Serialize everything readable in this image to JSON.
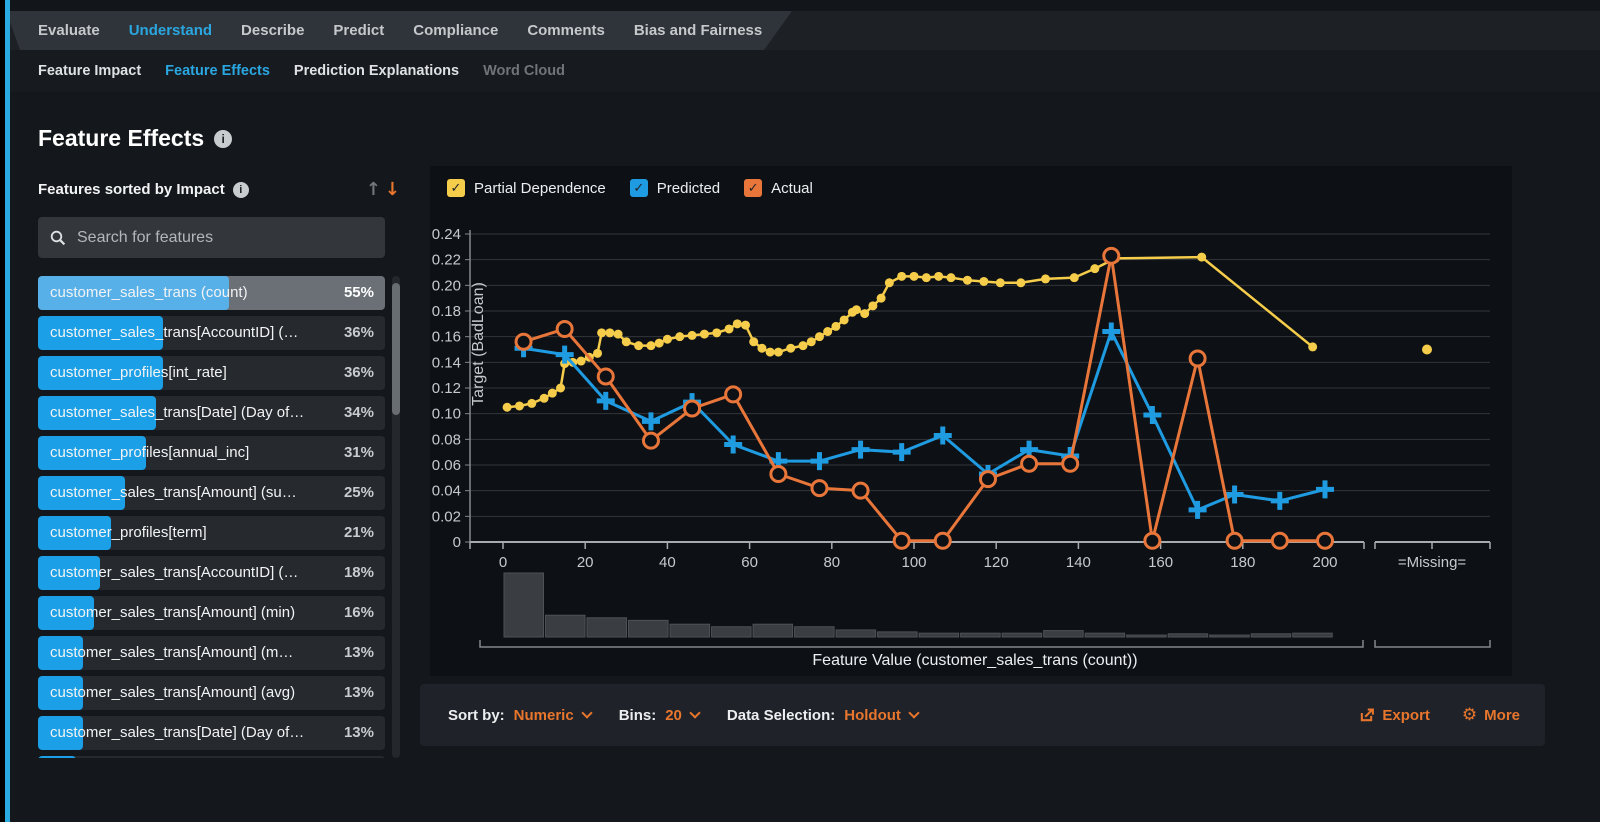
{
  "nav": {
    "tabs": [
      {
        "label": "Evaluate",
        "active": false
      },
      {
        "label": "Understand",
        "active": true
      },
      {
        "label": "Describe",
        "active": false
      },
      {
        "label": "Predict",
        "active": false
      },
      {
        "label": "Compliance",
        "active": false
      },
      {
        "label": "Comments",
        "active": false
      },
      {
        "label": "Bias and Fairness",
        "active": false
      }
    ]
  },
  "subnav": {
    "items": [
      {
        "label": "Feature Impact",
        "state": "normal"
      },
      {
        "label": "Feature Effects",
        "state": "active"
      },
      {
        "label": "Prediction Explanations",
        "state": "normal"
      },
      {
        "label": "Word Cloud",
        "state": "disabled"
      }
    ]
  },
  "page": {
    "title": "Feature Effects"
  },
  "sidebar": {
    "heading": "Features sorted by Impact",
    "search_placeholder": "Search for features",
    "features": [
      {
        "label": "customer_sales_trans (count)",
        "impact_pct": 55,
        "pct_text": "55%",
        "selected": true
      },
      {
        "label": "customer_sales_trans[AccountID] (…",
        "impact_pct": 36,
        "pct_text": "36%",
        "selected": false
      },
      {
        "label": "customer_profiles[int_rate]",
        "impact_pct": 36,
        "pct_text": "36%",
        "selected": false
      },
      {
        "label": "customer_sales_trans[Date] (Day of…",
        "impact_pct": 34,
        "pct_text": "34%",
        "selected": false
      },
      {
        "label": "customer_profiles[annual_inc]",
        "impact_pct": 31,
        "pct_text": "31%",
        "selected": false
      },
      {
        "label": "customer_sales_trans[Amount] (su…",
        "impact_pct": 25,
        "pct_text": "25%",
        "selected": false
      },
      {
        "label": "customer_profiles[term]",
        "impact_pct": 21,
        "pct_text": "21%",
        "selected": false
      },
      {
        "label": "customer_sales_trans[AccountID] (…",
        "impact_pct": 18,
        "pct_text": "18%",
        "selected": false
      },
      {
        "label": "customer_sales_trans[Amount] (min)",
        "impact_pct": 16,
        "pct_text": "16%",
        "selected": false
      },
      {
        "label": "customer_sales_trans[Amount] (m…",
        "impact_pct": 13,
        "pct_text": "13%",
        "selected": false
      },
      {
        "label": "customer_sales_trans[Amount] (avg)",
        "impact_pct": 13,
        "pct_text": "13%",
        "selected": false
      },
      {
        "label": "customer_sales_trans[Date] (Day of…",
        "impact_pct": 13,
        "pct_text": "13%",
        "selected": false
      }
    ],
    "partial_row_pct": 11
  },
  "legend": {
    "items": [
      {
        "label": "Partial Dependence",
        "color": "#f5cd4b",
        "checked": true
      },
      {
        "label": "Predicted",
        "color": "#1f9be1",
        "checked": true
      },
      {
        "label": "Actual",
        "color": "#e8763a",
        "checked": true
      }
    ]
  },
  "icons": {
    "info": "i",
    "sort_asc": "↑",
    "sort_desc": "↓",
    "more": "⚙",
    "check": "✓"
  },
  "controls": {
    "sort_by_label": "Sort by:",
    "sort_by_value": "Numeric",
    "bins_label": "Bins:",
    "bins_value": "20",
    "data_selection_label": "Data Selection:",
    "data_selection_value": "Holdout",
    "export_label": "Export",
    "more_label": "More"
  },
  "colors": {
    "accent_blue": "#2aa7e0",
    "accent_orange": "#e8762d",
    "partial_dependence": "#f5cd4b",
    "predicted": "#1f9be1",
    "actual": "#e8763a"
  },
  "chart_data": {
    "type": "line",
    "title": "",
    "ylabel": "Target (BadLoan)",
    "xlabel": "Feature Value (customer_sales_trans (count))",
    "ylim": [
      0,
      0.24
    ],
    "yticks": [
      "0",
      "0.02",
      "0.04",
      "0.06",
      "0.08",
      "0.10",
      "0.12",
      "0.14",
      "0.16",
      "0.18",
      "0.20",
      "0.22",
      "0.24"
    ],
    "xticks": [
      0,
      20,
      40,
      60,
      80,
      100,
      120,
      140,
      160,
      180,
      200
    ],
    "missing_label": "=Missing=",
    "grid": true,
    "legend_position": "top",
    "series": [
      {
        "name": "Partial Dependence",
        "color": "#f5cd4b",
        "marker": "dot",
        "x": [
          1,
          4,
          7,
          10,
          12,
          14,
          15,
          17,
          19,
          21,
          23,
          24,
          26,
          28,
          30,
          33,
          36,
          38,
          40,
          43,
          46,
          49,
          52,
          55,
          57,
          59,
          61,
          63,
          65,
          67,
          70,
          73,
          75,
          77,
          79,
          81,
          83,
          85,
          86,
          88,
          90,
          92,
          94,
          97,
          100,
          103,
          106,
          109,
          113,
          117,
          121,
          126,
          132,
          139,
          144,
          149,
          170,
          197
        ],
        "y": [
          0.105,
          0.106,
          0.108,
          0.112,
          0.116,
          0.12,
          0.139,
          0.14,
          0.141,
          0.144,
          0.147,
          0.163,
          0.163,
          0.162,
          0.156,
          0.153,
          0.153,
          0.155,
          0.158,
          0.16,
          0.161,
          0.162,
          0.163,
          0.166,
          0.17,
          0.169,
          0.156,
          0.151,
          0.148,
          0.148,
          0.151,
          0.153,
          0.156,
          0.16,
          0.164,
          0.168,
          0.173,
          0.179,
          0.181,
          0.178,
          0.184,
          0.19,
          0.202,
          0.207,
          0.207,
          0.206,
          0.207,
          0.206,
          0.204,
          0.203,
          0.202,
          0.202,
          0.205,
          0.206,
          0.213,
          0.221,
          0.222,
          0.152
        ],
        "missing_y": 0.15
      },
      {
        "name": "Predicted",
        "color": "#1f9be1",
        "marker": "plus",
        "x": [
          5,
          15,
          25,
          36,
          46,
          56,
          67,
          77,
          87,
          97,
          107,
          118,
          128,
          138,
          148,
          158,
          169,
          178,
          189,
          200
        ],
        "y": [
          0.151,
          0.146,
          0.11,
          0.094,
          0.109,
          0.076,
          0.063,
          0.063,
          0.072,
          0.07,
          0.083,
          0.053,
          0.072,
          0.067,
          0.164,
          0.099,
          0.025,
          0.037,
          0.032,
          0.041
        ]
      },
      {
        "name": "Actual",
        "color": "#e8763a",
        "marker": "circle",
        "x": [
          5,
          15,
          25,
          36,
          46,
          56,
          67,
          77,
          87,
          97,
          107,
          118,
          128,
          138,
          148,
          158,
          169,
          178,
          189,
          200
        ],
        "y": [
          0.156,
          0.166,
          0.129,
          0.079,
          0.104,
          0.115,
          0.053,
          0.042,
          0.04,
          0.001,
          0.001,
          0.049,
          0.061,
          0.061,
          0.223,
          0.001,
          0.143,
          0.001,
          0.001,
          0.001
        ]
      }
    ],
    "histogram": {
      "bin_start": 0,
      "bin_end": 202,
      "bins": 20,
      "rel_heights": [
        100,
        34,
        30,
        26,
        20,
        16,
        20,
        16,
        11,
        8,
        6,
        6,
        6,
        10,
        6,
        3,
        5,
        3,
        5,
        6
      ]
    }
  }
}
